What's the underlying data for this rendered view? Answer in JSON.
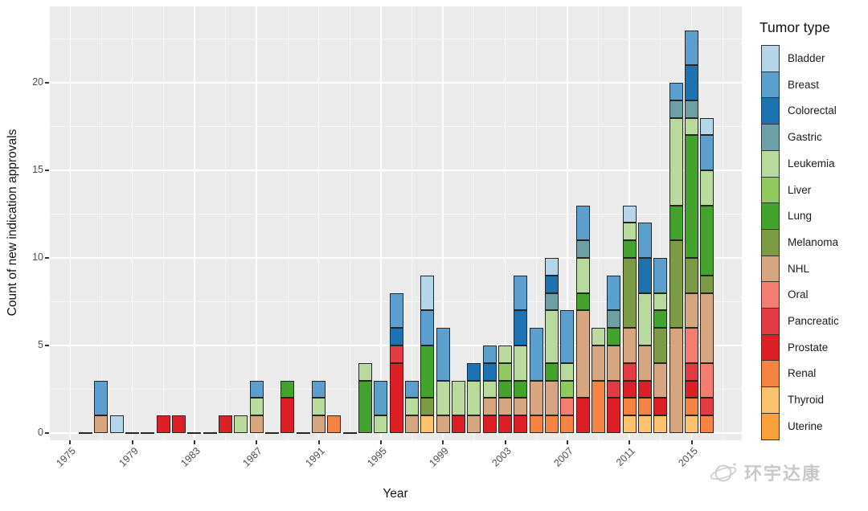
{
  "chart_data": {
    "type": "stacked_bar",
    "title": "",
    "xlabel": "Year",
    "ylabel": "Count of new indication approvals",
    "legend_title": "Tumor type",
    "legend_position": "right",
    "grid": true,
    "x_ticks": [
      1975,
      1979,
      1983,
      1987,
      1991,
      1995,
      1999,
      2003,
      2007,
      2011,
      2015
    ],
    "y_ticks": [
      0,
      5,
      10,
      15,
      20
    ],
    "ylim": [
      0,
      23.5
    ],
    "panel_background": "#ebebeb",
    "bar_border_color": "#262626",
    "categories": [
      {
        "name": "Bladder",
        "color": "#b5d5e9"
      },
      {
        "name": "Breast",
        "color": "#5c9fcd"
      },
      {
        "name": "Colorectal",
        "color": "#1d73b2"
      },
      {
        "name": "Gastric",
        "color": "#6da0a4"
      },
      {
        "name": "Leukemia",
        "color": "#b9da9d"
      },
      {
        "name": "Liver",
        "color": "#90c95f"
      },
      {
        "name": "Lung",
        "color": "#44a32d"
      },
      {
        "name": "Melanoma",
        "color": "#7b9c44"
      },
      {
        "name": "NHL",
        "color": "#d6a680"
      },
      {
        "name": "Oral",
        "color": "#f47d72"
      },
      {
        "name": "Pancreatic",
        "color": "#e23b43"
      },
      {
        "name": "Prostate",
        "color": "#dc2025"
      },
      {
        "name": "Renal",
        "color": "#f58442"
      },
      {
        "name": "Thyroid",
        "color": "#fcc26e"
      },
      {
        "name": "Uterine",
        "color": "#f9a23b"
      }
    ],
    "bars": [
      {
        "year": 1976,
        "total": 0,
        "segments": []
      },
      {
        "year": 1977,
        "total": 3,
        "segments": [
          [
            "NHL",
            1
          ],
          [
            "Breast",
            2
          ]
        ]
      },
      {
        "year": 1978,
        "total": 1,
        "segments": [
          [
            "Bladder",
            1
          ]
        ]
      },
      {
        "year": 1979,
        "total": 0,
        "segments": []
      },
      {
        "year": 1980,
        "total": 0,
        "segments": []
      },
      {
        "year": 1981,
        "total": 1,
        "segments": [
          [
            "Prostate",
            1
          ]
        ]
      },
      {
        "year": 1982,
        "total": 1,
        "segments": [
          [
            "Prostate",
            1
          ]
        ]
      },
      {
        "year": 1983,
        "total": 0,
        "segments": []
      },
      {
        "year": 1984,
        "total": 0,
        "segments": []
      },
      {
        "year": 1985,
        "total": 1,
        "segments": [
          [
            "Prostate",
            1
          ]
        ]
      },
      {
        "year": 1986,
        "total": 1,
        "segments": [
          [
            "Leukemia",
            1
          ]
        ]
      },
      {
        "year": 1987,
        "total": 3,
        "segments": [
          [
            "NHL",
            1
          ],
          [
            "Leukemia",
            1
          ],
          [
            "Breast",
            1
          ]
        ]
      },
      {
        "year": 1988,
        "total": 0,
        "segments": []
      },
      {
        "year": 1989,
        "total": 3,
        "segments": [
          [
            "Prostate",
            2
          ],
          [
            "Lung",
            1
          ]
        ]
      },
      {
        "year": 1990,
        "total": 0,
        "segments": []
      },
      {
        "year": 1991,
        "total": 3,
        "segments": [
          [
            "NHL",
            1
          ],
          [
            "Leukemia",
            1
          ],
          [
            "Breast",
            1
          ]
        ]
      },
      {
        "year": 1992,
        "total": 1,
        "segments": [
          [
            "Renal",
            1
          ]
        ]
      },
      {
        "year": 1993,
        "total": 0,
        "segments": []
      },
      {
        "year": 1994,
        "total": 4,
        "segments": [
          [
            "Lung",
            3
          ],
          [
            "Leukemia",
            1
          ]
        ]
      },
      {
        "year": 1995,
        "total": 3,
        "segments": [
          [
            "Leukemia",
            1
          ],
          [
            "Breast",
            2
          ]
        ]
      },
      {
        "year": 1996,
        "total": 8,
        "segments": [
          [
            "Prostate",
            4
          ],
          [
            "Pancreatic",
            1
          ],
          [
            "Colorectal",
            1
          ],
          [
            "Breast",
            2
          ]
        ]
      },
      {
        "year": 1997,
        "total": 3,
        "segments": [
          [
            "NHL",
            1
          ],
          [
            "Leukemia",
            1
          ],
          [
            "Breast",
            1
          ]
        ]
      },
      {
        "year": 1998,
        "total": 9,
        "segments": [
          [
            "Thyroid",
            1
          ],
          [
            "Melanoma",
            1
          ],
          [
            "Lung",
            3
          ],
          [
            "Breast",
            2
          ],
          [
            "Bladder",
            2
          ]
        ]
      },
      {
        "year": 1999,
        "total": 6,
        "segments": [
          [
            "NHL",
            1
          ],
          [
            "Leukemia",
            2
          ],
          [
            "Breast",
            3
          ]
        ]
      },
      {
        "year": 2000,
        "total": 3,
        "segments": [
          [
            "Prostate",
            1
          ],
          [
            "Leukemia",
            2
          ]
        ]
      },
      {
        "year": 2001,
        "total": 4,
        "segments": [
          [
            "NHL",
            1
          ],
          [
            "Leukemia",
            2
          ],
          [
            "Colorectal",
            1
          ]
        ]
      },
      {
        "year": 2002,
        "total": 5,
        "segments": [
          [
            "Prostate",
            1
          ],
          [
            "NHL",
            1
          ],
          [
            "Leukemia",
            1
          ],
          [
            "Colorectal",
            1
          ],
          [
            "Breast",
            1
          ]
        ]
      },
      {
        "year": 2003,
        "total": 5,
        "segments": [
          [
            "Prostate",
            1
          ],
          [
            "NHL",
            1
          ],
          [
            "Lung",
            1
          ],
          [
            "Liver",
            1
          ],
          [
            "Leukemia",
            1
          ]
        ]
      },
      {
        "year": 2004,
        "total": 9,
        "segments": [
          [
            "Prostate",
            1
          ],
          [
            "NHL",
            1
          ],
          [
            "Lung",
            1
          ],
          [
            "Leukemia",
            2
          ],
          [
            "Colorectal",
            2
          ],
          [
            "Breast",
            2
          ]
        ]
      },
      {
        "year": 2005,
        "total": 6,
        "segments": [
          [
            "Renal",
            1
          ],
          [
            "NHL",
            2
          ],
          [
            "Breast",
            3
          ]
        ]
      },
      {
        "year": 2006,
        "total": 10,
        "segments": [
          [
            "Renal",
            1
          ],
          [
            "NHL",
            2
          ],
          [
            "Lung",
            1
          ],
          [
            "Leukemia",
            3
          ],
          [
            "Gastric",
            1
          ],
          [
            "Colorectal",
            1
          ],
          [
            "Bladder",
            1
          ]
        ]
      },
      {
        "year": 2007,
        "total": 7,
        "segments": [
          [
            "Renal",
            1
          ],
          [
            "Oral",
            1
          ],
          [
            "Liver",
            1
          ],
          [
            "Leukemia",
            1
          ],
          [
            "Breast",
            3
          ]
        ]
      },
      {
        "year": 2008,
        "total": 13,
        "segments": [
          [
            "Prostate",
            2
          ],
          [
            "NHL",
            5
          ],
          [
            "Lung",
            1
          ],
          [
            "Leukemia",
            2
          ],
          [
            "Gastric",
            1
          ],
          [
            "Breast",
            2
          ]
        ]
      },
      {
        "year": 2009,
        "total": 6,
        "segments": [
          [
            "Renal",
            3
          ],
          [
            "NHL",
            2
          ],
          [
            "Leukemia",
            1
          ]
        ]
      },
      {
        "year": 2010,
        "total": 9,
        "segments": [
          [
            "Prostate",
            2
          ],
          [
            "Pancreatic",
            1
          ],
          [
            "NHL",
            2
          ],
          [
            "Lung",
            1
          ],
          [
            "Gastric",
            1
          ],
          [
            "Breast",
            2
          ]
        ]
      },
      {
        "year": 2011,
        "total": 13,
        "segments": [
          [
            "Thyroid",
            1
          ],
          [
            "Renal",
            1
          ],
          [
            "Prostate",
            1
          ],
          [
            "Pancreatic",
            1
          ],
          [
            "NHL",
            2
          ],
          [
            "Melanoma",
            4
          ],
          [
            "Lung",
            1
          ],
          [
            "Leukemia",
            1
          ],
          [
            "Bladder",
            1
          ]
        ]
      },
      {
        "year": 2012,
        "total": 12,
        "segments": [
          [
            "Thyroid",
            1
          ],
          [
            "Renal",
            1
          ],
          [
            "Prostate",
            1
          ],
          [
            "NHL",
            2
          ],
          [
            "Leukemia",
            3
          ],
          [
            "Colorectal",
            2
          ],
          [
            "Breast",
            2
          ]
        ]
      },
      {
        "year": 2013,
        "total": 10,
        "segments": [
          [
            "Thyroid",
            1
          ],
          [
            "Prostate",
            1
          ],
          [
            "NHL",
            2
          ],
          [
            "Melanoma",
            2
          ],
          [
            "Lung",
            1
          ],
          [
            "Leukemia",
            1
          ],
          [
            "Breast",
            2
          ]
        ]
      },
      {
        "year": 2014,
        "total": 20,
        "segments": [
          [
            "NHL",
            6
          ],
          [
            "Melanoma",
            5
          ],
          [
            "Lung",
            2
          ],
          [
            "Leukemia",
            5
          ],
          [
            "Gastric",
            1
          ],
          [
            "Breast",
            1
          ]
        ]
      },
      {
        "year": 2015,
        "total": 23,
        "segments": [
          [
            "Thyroid",
            1
          ],
          [
            "Renal",
            1
          ],
          [
            "Prostate",
            1
          ],
          [
            "Pancreatic",
            1
          ],
          [
            "Oral",
            2
          ],
          [
            "NHL",
            2
          ],
          [
            "Melanoma",
            2
          ],
          [
            "Lung",
            7
          ],
          [
            "Leukemia",
            1
          ],
          [
            "Gastric",
            1
          ],
          [
            "Colorectal",
            2
          ],
          [
            "Breast",
            2
          ]
        ]
      },
      {
        "year": 2016,
        "total": 18,
        "segments": [
          [
            "Renal",
            1
          ],
          [
            "Pancreatic",
            1
          ],
          [
            "Oral",
            2
          ],
          [
            "NHL",
            4
          ],
          [
            "Melanoma",
            1
          ],
          [
            "Lung",
            4
          ],
          [
            "Leukemia",
            2
          ],
          [
            "Breast",
            2
          ],
          [
            "Bladder",
            1
          ]
        ]
      }
    ]
  },
  "watermark": {
    "icon": "globe-orbit-icon",
    "text": "环宇达康"
  }
}
